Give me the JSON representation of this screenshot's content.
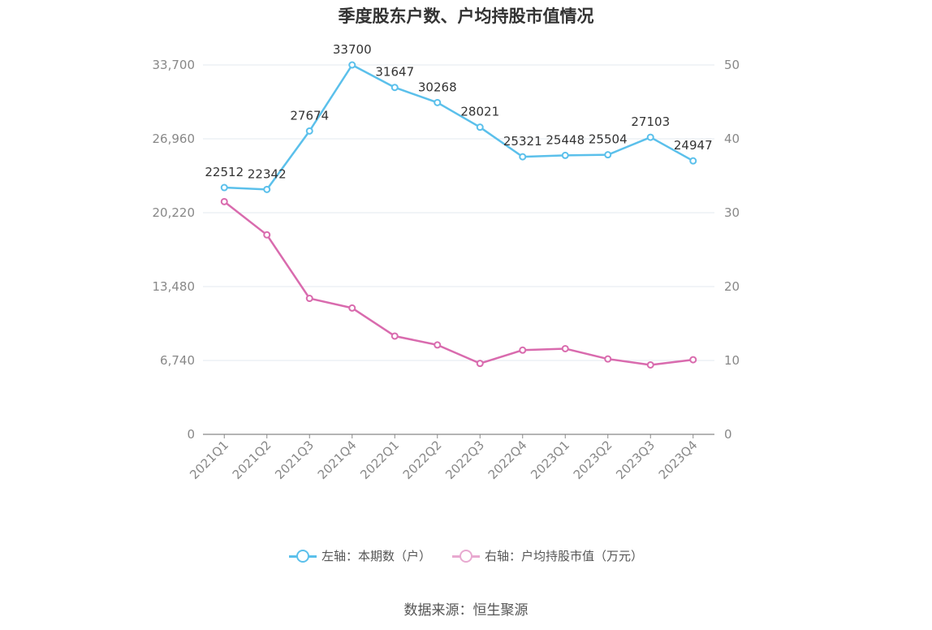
{
  "chart_data": {
    "type": "line",
    "title": "季度股东户数、户均持股市值情况",
    "categories": [
      "2021Q1",
      "2021Q2",
      "2021Q3",
      "2021Q4",
      "2022Q1",
      "2022Q2",
      "2022Q3",
      "2022Q4",
      "2023Q1",
      "2023Q2",
      "2023Q3",
      "2023Q4"
    ],
    "left_axis": {
      "ticks": [
        "0",
        "6,740",
        "13,480",
        "20,220",
        "26,960",
        "33,700"
      ],
      "ylim": [
        0,
        33700
      ]
    },
    "right_axis": {
      "ticks": [
        "0",
        "10",
        "20",
        "30",
        "40",
        "50"
      ],
      "ylim": [
        0,
        50
      ]
    },
    "series": [
      {
        "name": "左轴：本期数（户）",
        "axis": "left",
        "color": "#5bc0eb",
        "values": [
          22512,
          22342,
          27674,
          33700,
          31647,
          30268,
          28021,
          25321,
          25448,
          25504,
          27103,
          24947
        ],
        "labels": [
          "22512",
          "22342",
          "27674",
          "33700",
          "31647",
          "30268",
          "28021",
          "25321",
          "25448",
          "25504",
          "27103",
          "24947"
        ]
      },
      {
        "name": "右轴：户均持股市值（万元）",
        "axis": "right",
        "color": "#d96bae",
        "values": [
          31.5,
          27.0,
          18.4,
          17.1,
          13.3,
          12.1,
          9.6,
          11.4,
          11.6,
          10.2,
          9.4,
          10.1
        ]
      }
    ],
    "grid": true,
    "legend_position": "bottom"
  },
  "source": "数据来源：恒生聚源"
}
